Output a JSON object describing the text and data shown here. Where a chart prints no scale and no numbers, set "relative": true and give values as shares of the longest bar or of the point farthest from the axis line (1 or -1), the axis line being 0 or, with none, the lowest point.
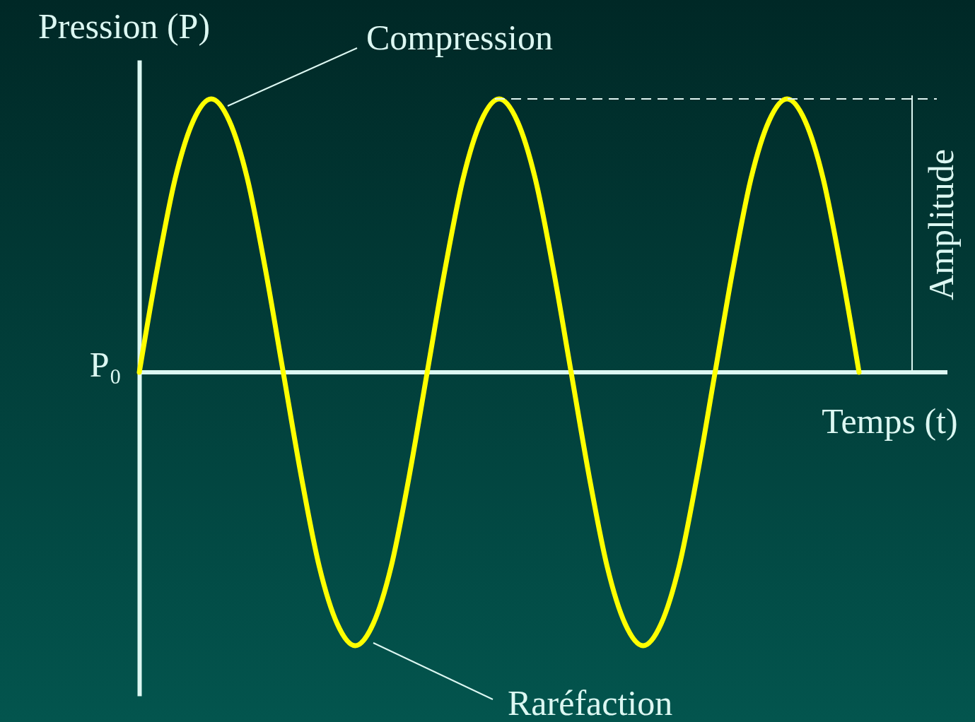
{
  "chart_data": {
    "type": "line",
    "relative": true,
    "xlabel": "Temps (t)",
    "ylabel": "Pression (P)",
    "categories": [
      null,
      null,
      null,
      null,
      null,
      null,
      null,
      null,
      null,
      null,
      null,
      null,
      null,
      null,
      null,
      null,
      null,
      null,
      null,
      null,
      null,
      null,
      null,
      null,
      null,
      null,
      null,
      null,
      null,
      null,
      null,
      null,
      null,
      null,
      null,
      null,
      null,
      null,
      null,
      null,
      null
    ],
    "series": [
      {
        "color": "#ffff00",
        "values": [
          0,
          0.38,
          0.71,
          0.92,
          1,
          0.92,
          0.71,
          0.38,
          0,
          -0.38,
          -0.71,
          -0.92,
          -1,
          -0.92,
          -0.71,
          -0.38,
          0,
          0.38,
          0.71,
          0.92,
          1,
          0.92,
          0.71,
          0.38,
          0,
          -0.38,
          -0.71,
          -0.92,
          -1,
          -0.92,
          -0.71,
          -0.38,
          0,
          0.38,
          0.71,
          0.92,
          1,
          0.92,
          0.71,
          0.38,
          0
        ]
      }
    ],
    "ref_lines": [
      {
        "axis": "y",
        "value": 1,
        "color": "#e0f5f2",
        "line_style": "dashed"
      }
    ],
    "annotations": [
      "Compression",
      "Raréfaction",
      "Amplitude",
      "P₀"
    ]
  }
}
